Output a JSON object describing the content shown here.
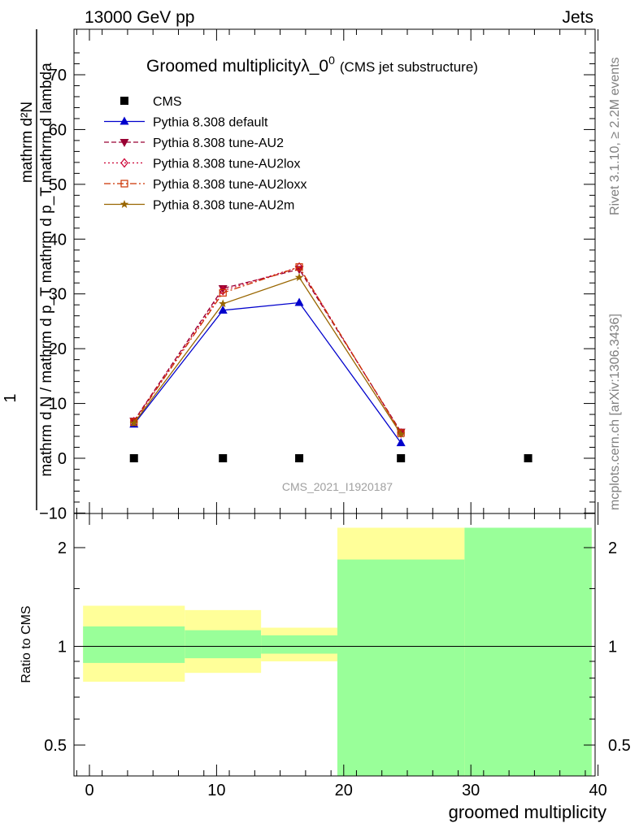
{
  "header": {
    "left": "13000 GeV pp",
    "right": "Jets"
  },
  "side_labels": {
    "rivet": "Rivet 3.1.10, ≥ 2.2M events",
    "mcplots": "mcplots.cern.ch [arXiv:1306.3436]"
  },
  "watermark": "CMS_2021_I1920187",
  "title": {
    "main": "Groomed multiplicityλ_0",
    "sup": "0",
    "sub": "(CMS jet substructure)"
  },
  "ylabel": {
    "numerator": "mathrm d²N",
    "denominator": "mathrm d N / mathrm d p_T mathrm d p_T mathrm d lambda",
    "one": "1"
  },
  "ratio_ylabel": "Ratio to CMS",
  "xlabel": "groomed multiplicity",
  "colors": {
    "default": "#0000cc",
    "au2": "#990033",
    "au2lox": "#cc0033",
    "au2loxx": "#cc3300",
    "au2m": "#996600",
    "band_inner": "#99ff99",
    "band_outer": "#ffff99"
  },
  "chart_data": [
    {
      "type": "line",
      "panel": "main",
      "ylim": [
        -10,
        78
      ],
      "xlim": [
        -1,
        40
      ],
      "yticks": [
        -10,
        0,
        10,
        20,
        30,
        40,
        50,
        60,
        70
      ],
      "ytick_labels": [
        "−10",
        "0",
        "10",
        "20",
        "30",
        "40",
        "50",
        "60",
        "70"
      ],
      "series": [
        {
          "name": "CMS",
          "key": "cms",
          "marker": "square",
          "x": [
            3.5,
            10.5,
            16.5,
            24.5,
            34.5
          ],
          "y": [
            0,
            0,
            0,
            0,
            0
          ]
        },
        {
          "name": "Pythia 8.308 default",
          "key": "default",
          "marker": "triangle-up",
          "dash": "",
          "x": [
            3.5,
            10.5,
            16.5,
            24.5
          ],
          "y": [
            6.2,
            27.0,
            28.4,
            2.8
          ]
        },
        {
          "name": "Pythia 8.308 tune-AU2",
          "key": "au2",
          "marker": "triangle-down",
          "dash": "6,3",
          "x": [
            3.5,
            10.5,
            16.5,
            24.5
          ],
          "y": [
            6.8,
            31.0,
            34.5,
            4.8
          ]
        },
        {
          "name": "Pythia 8.308 tune-AU2lox",
          "key": "au2lox",
          "marker": "diamond-open",
          "dash": "2,3",
          "x": [
            3.5,
            10.5,
            16.5,
            24.5
          ],
          "y": [
            6.7,
            30.6,
            34.9,
            4.6
          ]
        },
        {
          "name": "Pythia 8.308 tune-AU2loxx",
          "key": "au2loxx",
          "marker": "square-open",
          "dash": "8,3,2,3",
          "x": [
            3.5,
            10.5,
            16.5,
            24.5
          ],
          "y": [
            6.6,
            30.2,
            34.9,
            4.6
          ]
        },
        {
          "name": "Pythia 8.308 tune-AU2m",
          "key": "au2m",
          "marker": "star",
          "dash": "",
          "x": [
            3.5,
            10.5,
            16.5,
            24.5
          ],
          "y": [
            6.4,
            28.2,
            33.0,
            4.4
          ]
        }
      ]
    },
    {
      "type": "area",
      "panel": "ratio",
      "yscale": "log",
      "ylim": [
        0.4,
        2.3
      ],
      "yticks": [
        0.5,
        1,
        2
      ],
      "ytick_labels": [
        "0.5",
        "1",
        "2"
      ],
      "xticks": [
        0,
        10,
        20,
        30,
        40
      ],
      "xtick_labels": [
        "0",
        "10",
        "20",
        "30",
        "40"
      ],
      "bins": [
        {
          "lo": -0.5,
          "hi": 7.5,
          "inner": [
            0.89,
            1.15
          ],
          "outer": [
            0.78,
            1.33
          ]
        },
        {
          "lo": 7.5,
          "hi": 13.5,
          "inner": [
            0.92,
            1.12
          ],
          "outer": [
            0.83,
            1.29
          ]
        },
        {
          "lo": 13.5,
          "hi": 19.5,
          "inner": [
            0.95,
            1.08
          ],
          "outer": [
            0.9,
            1.14
          ]
        },
        {
          "lo": 19.5,
          "hi": 29.5,
          "inner": [
            0.4,
            1.84
          ],
          "outer": [
            0.4,
            2.3
          ]
        },
        {
          "lo": 29.5,
          "hi": 39.5,
          "inner": [
            0.4,
            2.3
          ],
          "outer": [
            0.4,
            2.3
          ]
        }
      ]
    }
  ]
}
